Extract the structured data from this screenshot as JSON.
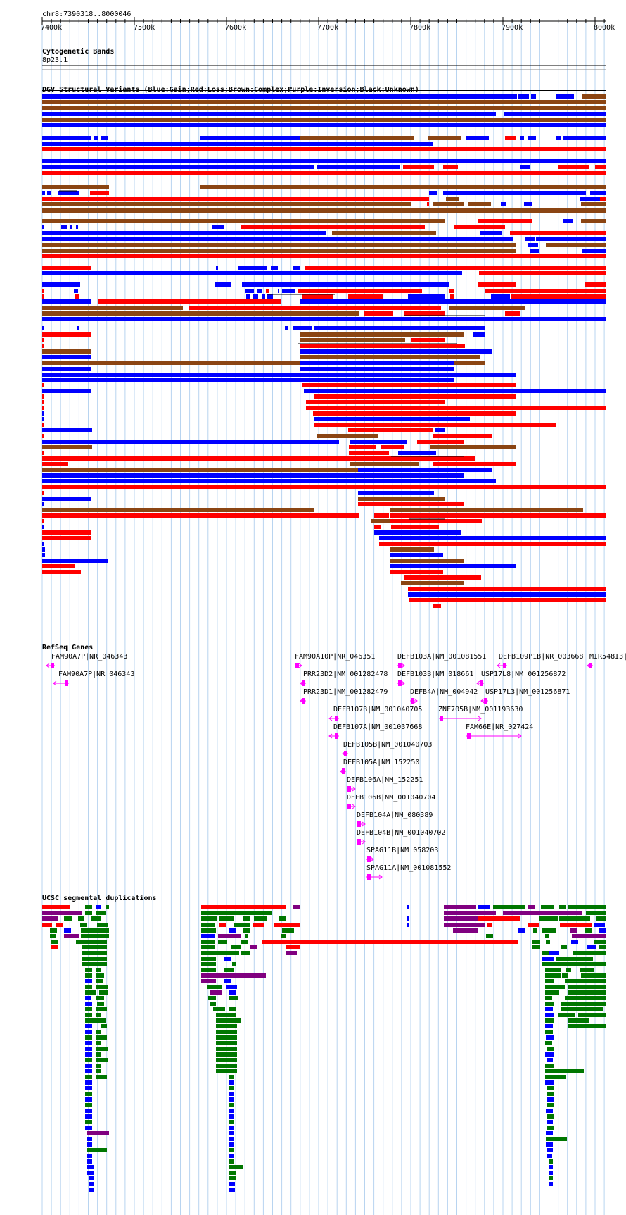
{
  "locus": "chr8:7390318..8000046",
  "ruler": {
    "start_bp": 7390318,
    "end_bp": 8000046,
    "ticks": [
      {
        "bp": 7400000,
        "label": "7400k"
      },
      {
        "bp": 7500000,
        "label": "7500k"
      },
      {
        "bp": 7600000,
        "label": "7600k"
      },
      {
        "bp": 7700000,
        "label": "7700k"
      },
      {
        "bp": 7800000,
        "label": "7800k"
      },
      {
        "bp": 7900000,
        "label": "7900k"
      },
      {
        "bp": 8000000,
        "label": "8000k"
      }
    ]
  },
  "colors": {
    "gain": "#0000ff",
    "loss": "#ff0000",
    "complex": "#8b4513",
    "inversion": "#800080",
    "unknown": "#000000",
    "gene": "#ff00ff",
    "seg_green": "#007700",
    "grid": "#b8d4f0"
  },
  "cyto": {
    "title": "Cytogenetic Bands",
    "band": "8p23.1"
  },
  "dgv": {
    "title": "DGV Structural Variants (Blue:Gain;Red:Loss;Brown:Complex;Purple:Inversion;Black:Unknown)"
  },
  "refseq": {
    "title": "RefSeq Genes",
    "genes": [
      {
        "label": "FAM90A7P|NR_046343",
        "strand": "-"
      },
      {
        "label": "FAM90A7P|NR_046343",
        "strand": "-"
      },
      {
        "label": "FAM90A10P|NR_046351",
        "strand": "+"
      },
      {
        "label": "PRR23D2|NM_001282478",
        "strand": "-"
      },
      {
        "label": "PRR23D1|NM_001282479",
        "strand": "-"
      },
      {
        "label": "DEFB107B|NM_001040705",
        "strand": "-"
      },
      {
        "label": "DEFB107A|NM_001037668",
        "strand": "-"
      },
      {
        "label": "DEFB105B|NM_001040703",
        "strand": "-"
      },
      {
        "label": "DEFB105A|NM_152250",
        "strand": "-"
      },
      {
        "label": "DEFB106A|NM_152251",
        "strand": "+"
      },
      {
        "label": "DEFB106B|NM_001040704",
        "strand": "+"
      },
      {
        "label": "DEFB104A|NM_080389",
        "strand": "+"
      },
      {
        "label": "DEFB104B|NM_001040702",
        "strand": "+"
      },
      {
        "label": "SPAG11B|NM_058203",
        "strand": "+"
      },
      {
        "label": "SPAG11A|NM_001081552",
        "strand": "+"
      },
      {
        "label": "DEFB103A|NM_001081551",
        "strand": "+"
      },
      {
        "label": "DEFB103B|NM_018661",
        "strand": "+"
      },
      {
        "label": "DEFB4A|NM_004942",
        "strand": "+"
      },
      {
        "label": "ZNF705B|NM_001193630",
        "strand": "+"
      },
      {
        "label": "DEFB109P1B|NR_003668",
        "strand": "-"
      },
      {
        "label": "USP17L8|NM_001256872",
        "strand": "-"
      },
      {
        "label": "USP17L3|NM_001256871",
        "strand": "-"
      },
      {
        "label": "FAM66E|NR_027424",
        "strand": "+"
      },
      {
        "label": "MIR548I3|",
        "strand": "-"
      }
    ]
  },
  "segdup": {
    "title": "UCSC segmental duplications"
  }
}
